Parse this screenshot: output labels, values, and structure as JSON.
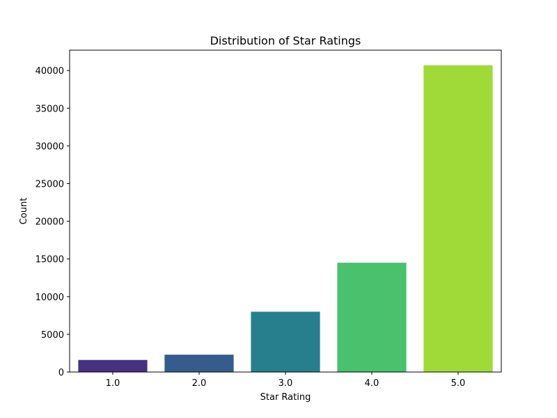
{
  "chart_data": {
    "type": "bar",
    "title": "Distribution of Star Ratings",
    "xlabel": "Star Rating",
    "ylabel": "Count",
    "categories": [
      "1.0",
      "2.0",
      "3.0",
      "4.0",
      "5.0"
    ],
    "values": [
      1600,
      2300,
      8000,
      14500,
      40700
    ],
    "colors": [
      "#46327e",
      "#365c8d",
      "#277f8e",
      "#4ac16d",
      "#a0da39"
    ],
    "ylim": [
      0,
      42700
    ],
    "yticks": [
      0,
      5000,
      10000,
      15000,
      20000,
      25000,
      30000,
      35000,
      40000
    ],
    "ytick_labels": [
      "0",
      "5000",
      "10000",
      "15000",
      "20000",
      "25000",
      "30000",
      "35000",
      "40000"
    ],
    "grid": false,
    "legend": "none"
  }
}
